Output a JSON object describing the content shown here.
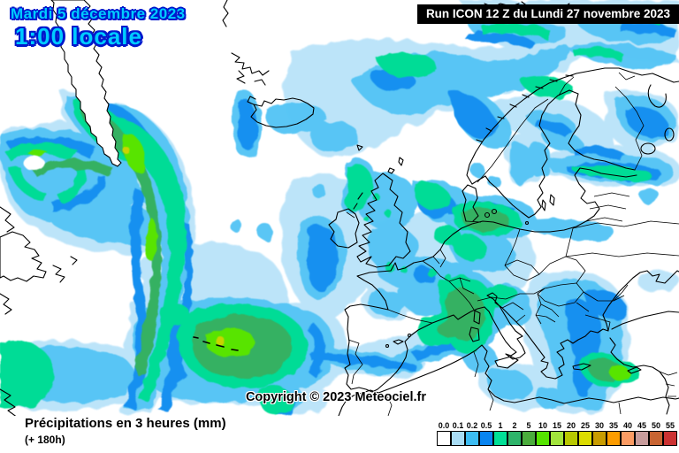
{
  "header": {
    "date_label": "Mardi 5 décembre 2023",
    "time_label": "1:00 locale",
    "run_label": "Run ICON 12 Z du Lundi 27 novembre 2023"
  },
  "map": {
    "copyright": "Copyright © 2023 Meteociel.fr"
  },
  "legend": {
    "title": "Précipitations en 3 heures (mm)",
    "subtitle": "(+ 180h)",
    "scale": [
      {
        "label": "0.0",
        "color": "#FFFFFF"
      },
      {
        "label": "0.1",
        "color": "#A8DCF4"
      },
      {
        "label": "0.2",
        "color": "#3CBCF2"
      },
      {
        "label": "0.5",
        "color": "#0884F0"
      },
      {
        "label": "1",
        "color": "#00E096"
      },
      {
        "label": "2",
        "color": "#2EB46A"
      },
      {
        "label": "5",
        "color": "#4AAC3C"
      },
      {
        "label": "10",
        "color": "#55E400"
      },
      {
        "label": "15",
        "color": "#A2E43C"
      },
      {
        "label": "20",
        "color": "#B8C800"
      },
      {
        "label": "25",
        "color": "#DCDC00"
      },
      {
        "label": "30",
        "color": "#C89C00"
      },
      {
        "label": "35",
        "color": "#FC9C00"
      },
      {
        "label": "40",
        "color": "#FC9C64"
      },
      {
        "label": "45",
        "color": "#C89C9C"
      },
      {
        "label": "50",
        "color": "#C86432"
      },
      {
        "label": "55",
        "color": "#CC3232"
      }
    ]
  },
  "colors": {
    "title_fill": "#00CCFF",
    "run_box_bg": "#000000",
    "run_box_text": "#FFFFFF",
    "precip_light": "#B9E3F9",
    "precip_cyan": "#55C5F5",
    "precip_blue": "#1590F0",
    "precip_green1": "#00DC96",
    "precip_green2": "#35B162",
    "precip_lime": "#58E400",
    "precip_yellow": "#C9D400",
    "coast_line": "#000000"
  }
}
